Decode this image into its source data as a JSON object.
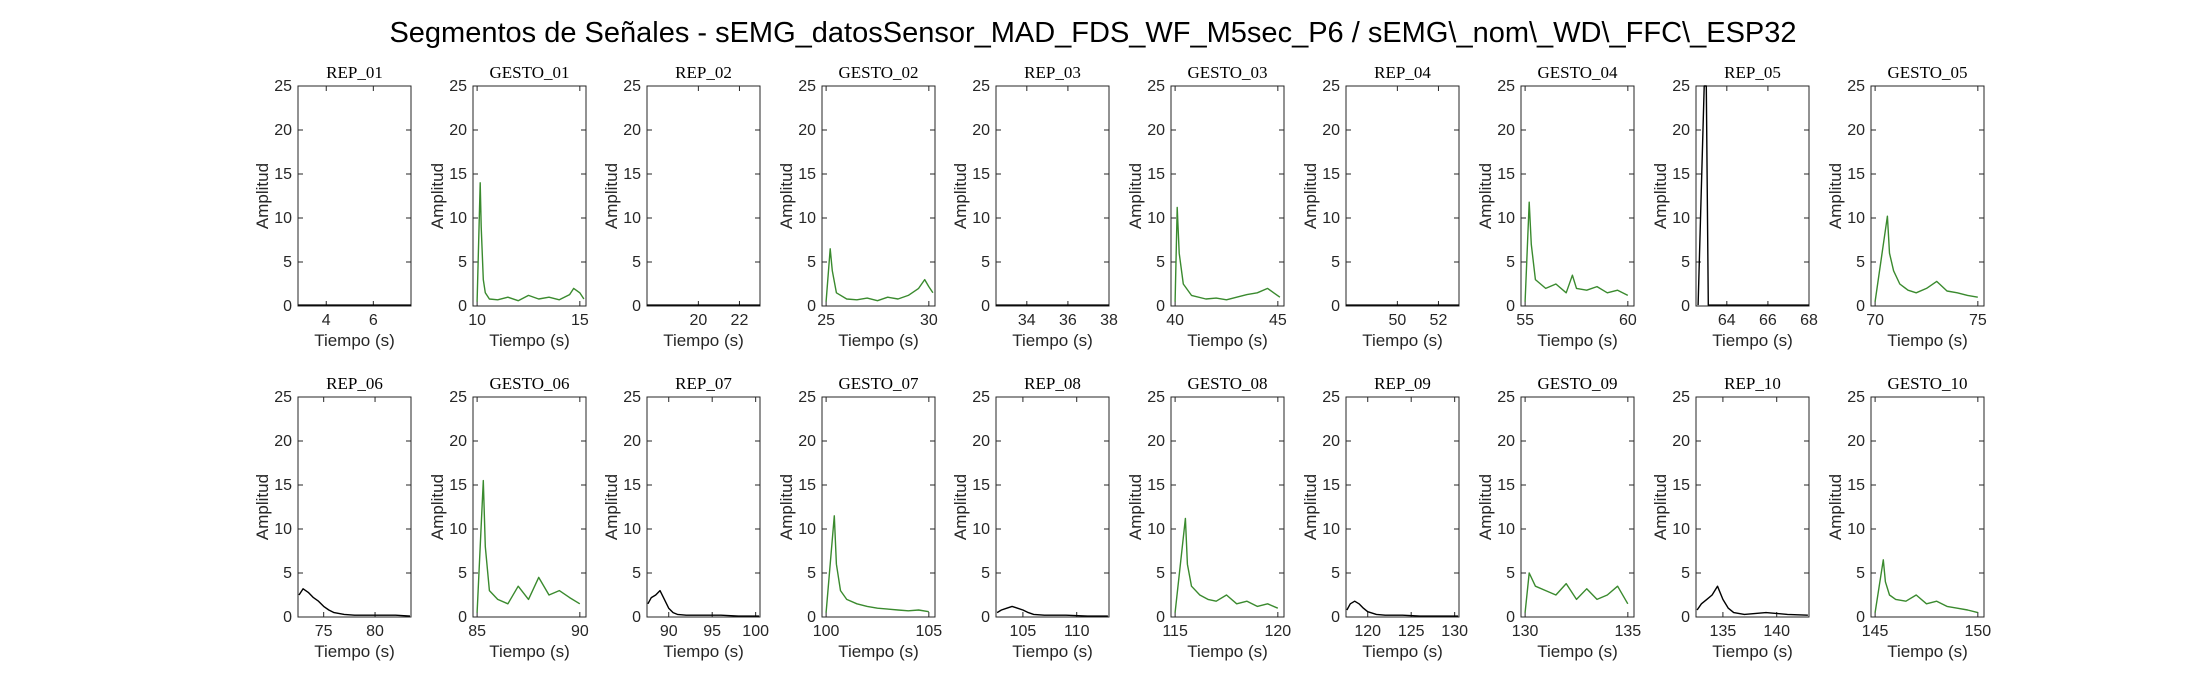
{
  "figure": {
    "title": "Segmentos de Señales - sEMG_datosSensor_MAD_FDS_WF_M5sec_P6 / sEMG\\_nom\\_WD\\_FFC\\_ESP32"
  },
  "colors": {
    "rep": "#000000",
    "gesto": "#3a8a2e",
    "axis": "#262626"
  },
  "chart_data": [
    {
      "type": "line",
      "title": "REP_01",
      "xlabel": "Tiempo (s)",
      "ylabel": "Amplitud",
      "xlim": [
        2.8,
        7.6
      ],
      "ylim": [
        0,
        25
      ],
      "xticks": [
        4,
        6
      ],
      "yticks": [
        0,
        5,
        10,
        15,
        20,
        25
      ],
      "series": [
        {
          "x": [
            2.8,
            3.0,
            3.5,
            4.0,
            4.5,
            5.0,
            5.5,
            6.0,
            6.5,
            7.0,
            7.6
          ],
          "values": [
            0.1,
            0.1,
            0.1,
            0.1,
            0.1,
            0.1,
            0.1,
            0.1,
            0.1,
            0.1,
            0.1
          ]
        }
      ]
    },
    {
      "type": "line",
      "title": "GESTO_01",
      "xlabel": "Tiempo (s)",
      "ylabel": "Amplitud",
      "xlim": [
        9.8,
        15.3
      ],
      "ylim": [
        0,
        25
      ],
      "xticks": [
        10,
        15
      ],
      "yticks": [
        0,
        5,
        10,
        15,
        20,
        25
      ],
      "series": [
        {
          "x": [
            10.0,
            10.15,
            10.2,
            10.3,
            10.4,
            10.6,
            11.0,
            11.5,
            12.0,
            12.5,
            13.0,
            13.5,
            14.0,
            14.5,
            14.7,
            15.0,
            15.2
          ],
          "values": [
            0.5,
            14.0,
            9.0,
            3.0,
            1.5,
            0.8,
            0.7,
            1.0,
            0.6,
            1.2,
            0.8,
            1.0,
            0.7,
            1.3,
            2.0,
            1.5,
            0.8
          ]
        }
      ]
    },
    {
      "type": "line",
      "title": "REP_02",
      "xlabel": "Tiempo (s)",
      "ylabel": "Amplitud",
      "xlim": [
        17.5,
        23.0
      ],
      "ylim": [
        0,
        25
      ],
      "xticks": [
        20,
        22
      ],
      "yticks": [
        0,
        5,
        10,
        15,
        20,
        25
      ],
      "series": [
        {
          "x": [
            17.5,
            18,
            19,
            20,
            21,
            22,
            23
          ],
          "values": [
            0.1,
            0.1,
            0.1,
            0.1,
            0.1,
            0.1,
            0.1
          ]
        }
      ]
    },
    {
      "type": "line",
      "title": "GESTO_02",
      "xlabel": "Tiempo (s)",
      "ylabel": "Amplitud",
      "xlim": [
        24.8,
        30.3
      ],
      "ylim": [
        0,
        25
      ],
      "xticks": [
        25,
        30
      ],
      "yticks": [
        0,
        5,
        10,
        15,
        20,
        25
      ],
      "series": [
        {
          "x": [
            25.0,
            25.2,
            25.3,
            25.5,
            26.0,
            26.5,
            27.0,
            27.5,
            28.0,
            28.5,
            29.0,
            29.5,
            29.8,
            30.0,
            30.2
          ],
          "values": [
            0.5,
            6.5,
            4.0,
            1.5,
            0.8,
            0.7,
            0.9,
            0.6,
            1.0,
            0.8,
            1.2,
            2.0,
            3.0,
            2.2,
            1.5
          ]
        }
      ]
    },
    {
      "type": "line",
      "title": "REP_03",
      "xlabel": "Tiempo (s)",
      "ylabel": "Amplitud",
      "xlim": [
        32.5,
        38.0
      ],
      "ylim": [
        0,
        25
      ],
      "xticks": [
        34,
        36,
        38
      ],
      "yticks": [
        0,
        5,
        10,
        15,
        20,
        25
      ],
      "series": [
        {
          "x": [
            32.5,
            33,
            34,
            35,
            36,
            37,
            38
          ],
          "values": [
            0.1,
            0.1,
            0.1,
            0.1,
            0.1,
            0.1,
            0.1
          ]
        }
      ]
    },
    {
      "type": "line",
      "title": "GESTO_03",
      "xlabel": "Tiempo (s)",
      "ylabel": "Amplitud",
      "xlim": [
        39.8,
        45.3
      ],
      "ylim": [
        0,
        25
      ],
      "xticks": [
        40,
        45
      ],
      "yticks": [
        0,
        5,
        10,
        15,
        20,
        25
      ],
      "series": [
        {
          "x": [
            40.0,
            40.1,
            40.2,
            40.4,
            40.8,
            41.5,
            42.0,
            42.5,
            43.0,
            43.5,
            44.0,
            44.5,
            44.8,
            45.1
          ],
          "values": [
            0.5,
            11.2,
            6.0,
            2.5,
            1.2,
            0.8,
            0.9,
            0.7,
            1.0,
            1.3,
            1.5,
            2.0,
            1.5,
            1.0
          ]
        }
      ]
    },
    {
      "type": "line",
      "title": "REP_04",
      "xlabel": "Tiempo (s)",
      "ylabel": "Amplitud",
      "xlim": [
        47.5,
        53.0
      ],
      "ylim": [
        0,
        25
      ],
      "xticks": [
        50,
        52
      ],
      "yticks": [
        0,
        5,
        10,
        15,
        20,
        25
      ],
      "series": [
        {
          "x": [
            47.5,
            48,
            49,
            50,
            51,
            52,
            53
          ],
          "values": [
            0.1,
            0.1,
            0.1,
            0.1,
            0.1,
            0.1,
            0.1
          ]
        }
      ]
    },
    {
      "type": "line",
      "title": "GESTO_04",
      "xlabel": "Tiempo (s)",
      "ylabel": "Amplitud",
      "xlim": [
        54.8,
        60.3
      ],
      "ylim": [
        0,
        25
      ],
      "xticks": [
        55,
        60
      ],
      "yticks": [
        0,
        5,
        10,
        15,
        20,
        25
      ],
      "series": [
        {
          "x": [
            55.0,
            55.2,
            55.3,
            55.5,
            56.0,
            56.5,
            57.0,
            57.3,
            57.5,
            58.0,
            58.5,
            59.0,
            59.5,
            60.0
          ],
          "values": [
            0.5,
            11.8,
            7.0,
            3.0,
            2.0,
            2.5,
            1.5,
            3.5,
            2.0,
            1.8,
            2.2,
            1.5,
            1.8,
            1.2
          ]
        }
      ]
    },
    {
      "type": "line",
      "title": "REP_05",
      "xlabel": "Tiempo (s)",
      "ylabel": "Amplitud",
      "xlim": [
        62.5,
        68.0
      ],
      "ylim": [
        0,
        25
      ],
      "xticks": [
        64,
        66,
        68
      ],
      "yticks": [
        0,
        5,
        10,
        15,
        20,
        25
      ],
      "series": [
        {
          "x": [
            62.6,
            62.9,
            63.0,
            63.1,
            64,
            65,
            66,
            67,
            68
          ],
          "values": [
            0.1,
            25.0,
            25.0,
            0.1,
            0.1,
            0.1,
            0.1,
            0.1,
            0.1
          ]
        }
      ]
    },
    {
      "type": "line",
      "title": "GESTO_05",
      "xlabel": "Tiempo (s)",
      "ylabel": "Amplitud",
      "xlim": [
        69.8,
        75.3
      ],
      "ylim": [
        0,
        25
      ],
      "xticks": [
        70,
        75
      ],
      "yticks": [
        0,
        5,
        10,
        15,
        20,
        25
      ],
      "series": [
        {
          "x": [
            70.0,
            70.6,
            70.7,
            70.9,
            71.2,
            71.6,
            72.0,
            72.5,
            73.0,
            73.5,
            74.0,
            74.5,
            75.0
          ],
          "values": [
            0.5,
            10.2,
            6.0,
            4.0,
            2.5,
            1.8,
            1.5,
            2.0,
            2.8,
            1.7,
            1.5,
            1.2,
            1.0
          ]
        }
      ]
    },
    {
      "type": "line",
      "title": "REP_06",
      "xlabel": "Tiempo (s)",
      "ylabel": "Amplitud",
      "xlim": [
        72.5,
        83.5
      ],
      "ylim": [
        0,
        25
      ],
      "xticks": [
        75,
        80
      ],
      "yticks": [
        0,
        5,
        10,
        15,
        20,
        25
      ],
      "series": [
        {
          "x": [
            72.6,
            73.0,
            73.5,
            74.0,
            74.5,
            75.0,
            75.5,
            76.0,
            77.0,
            78.0,
            80.0,
            82.0,
            83.4
          ],
          "values": [
            2.5,
            3.2,
            2.8,
            2.2,
            1.8,
            1.2,
            0.8,
            0.5,
            0.3,
            0.2,
            0.2,
            0.2,
            0.1
          ]
        }
      ]
    },
    {
      "type": "line",
      "title": "GESTO_06",
      "xlabel": "Tiempo (s)",
      "ylabel": "Amplitud",
      "xlim": [
        84.8,
        90.3
      ],
      "ylim": [
        0,
        25
      ],
      "xticks": [
        85,
        90
      ],
      "yticks": [
        0,
        5,
        10,
        15,
        20,
        25
      ],
      "series": [
        {
          "x": [
            85.0,
            85.3,
            85.4,
            85.6,
            86.0,
            86.5,
            87.0,
            87.5,
            88.0,
            88.5,
            89.0,
            89.5,
            90.0
          ],
          "values": [
            0.5,
            15.5,
            8.0,
            3.0,
            2.0,
            1.5,
            3.5,
            2.0,
            4.5,
            2.5,
            3.0,
            2.2,
            1.5
          ]
        }
      ]
    },
    {
      "type": "line",
      "title": "REP_07",
      "xlabel": "Tiempo (s)",
      "ylabel": "Amplitud",
      "xlim": [
        87.5,
        100.5
      ],
      "ylim": [
        0,
        25
      ],
      "xticks": [
        90,
        95,
        100
      ],
      "yticks": [
        0,
        5,
        10,
        15,
        20,
        25
      ],
      "series": [
        {
          "x": [
            87.6,
            88.0,
            88.5,
            89.0,
            89.5,
            90.0,
            90.5,
            91.0,
            92.0,
            94.0,
            96.0,
            98.0,
            100.4
          ],
          "values": [
            1.5,
            2.2,
            2.5,
            3.0,
            2.0,
            1.0,
            0.5,
            0.3,
            0.2,
            0.2,
            0.2,
            0.1,
            0.1
          ]
        }
      ]
    },
    {
      "type": "line",
      "title": "GESTO_07",
      "xlabel": "Tiempo (s)",
      "ylabel": "Amplitud",
      "xlim": [
        99.8,
        105.3
      ],
      "ylim": [
        0,
        25
      ],
      "xticks": [
        100,
        105
      ],
      "yticks": [
        0,
        5,
        10,
        15,
        20,
        25
      ],
      "series": [
        {
          "x": [
            100.0,
            100.4,
            100.5,
            100.7,
            101.0,
            101.5,
            102.0,
            102.5,
            103.0,
            103.5,
            104.0,
            104.5,
            105.0
          ],
          "values": [
            0.5,
            11.5,
            6.0,
            3.0,
            2.0,
            1.5,
            1.2,
            1.0,
            0.9,
            0.8,
            0.7,
            0.8,
            0.6
          ]
        }
      ]
    },
    {
      "type": "line",
      "title": "REP_08",
      "xlabel": "Tiempo (s)",
      "ylabel": "Amplitud",
      "xlim": [
        102.5,
        113.0
      ],
      "ylim": [
        0,
        25
      ],
      "xticks": [
        105,
        110
      ],
      "yticks": [
        0,
        5,
        10,
        15,
        20,
        25
      ],
      "series": [
        {
          "x": [
            102.6,
            103.0,
            103.5,
            104.0,
            104.5,
            105.0,
            105.5,
            106.0,
            107.0,
            109.0,
            111.0,
            112.9
          ],
          "values": [
            0.5,
            0.8,
            1.0,
            1.2,
            1.0,
            0.8,
            0.5,
            0.3,
            0.2,
            0.2,
            0.1,
            0.1
          ]
        }
      ]
    },
    {
      "type": "line",
      "title": "GESTO_08",
      "xlabel": "Tiempo (s)",
      "ylabel": "Amplitud",
      "xlim": [
        114.8,
        120.3
      ],
      "ylim": [
        0,
        25
      ],
      "xticks": [
        115,
        120
      ],
      "yticks": [
        0,
        5,
        10,
        15,
        20,
        25
      ],
      "series": [
        {
          "x": [
            115.0,
            115.5,
            115.6,
            115.8,
            116.2,
            116.6,
            117.0,
            117.5,
            118.0,
            118.5,
            119.0,
            119.5,
            120.0
          ],
          "values": [
            0.5,
            11.2,
            6.0,
            3.5,
            2.5,
            2.0,
            1.8,
            2.5,
            1.5,
            1.8,
            1.2,
            1.5,
            1.0
          ]
        }
      ]
    },
    {
      "type": "line",
      "title": "REP_09",
      "xlabel": "Tiempo (s)",
      "ylabel": "Amplitud",
      "xlim": [
        117.5,
        130.5
      ],
      "ylim": [
        0,
        25
      ],
      "xticks": [
        120,
        125,
        130
      ],
      "yticks": [
        0,
        5,
        10,
        15,
        20,
        25
      ],
      "series": [
        {
          "x": [
            117.6,
            118.0,
            118.5,
            119.0,
            119.5,
            120.0,
            121.0,
            122.0,
            124.0,
            126.0,
            128.0,
            130.4
          ],
          "values": [
            0.8,
            1.5,
            1.8,
            1.5,
            1.0,
            0.6,
            0.3,
            0.2,
            0.2,
            0.1,
            0.1,
            0.1
          ]
        }
      ]
    },
    {
      "type": "line",
      "title": "GESTO_09",
      "xlabel": "Tiempo (s)",
      "ylabel": "Amplitud",
      "xlim": [
        129.8,
        135.3
      ],
      "ylim": [
        0,
        25
      ],
      "xticks": [
        130,
        135
      ],
      "yticks": [
        0,
        5,
        10,
        15,
        20,
        25
      ],
      "series": [
        {
          "x": [
            130.0,
            130.2,
            130.5,
            131.0,
            131.5,
            132.0,
            132.5,
            133.0,
            133.5,
            134.0,
            134.5,
            135.0
          ],
          "values": [
            0.5,
            5.0,
            3.5,
            3.0,
            2.5,
            3.8,
            2.0,
            3.2,
            2.0,
            2.5,
            3.5,
            1.5
          ]
        }
      ]
    },
    {
      "type": "line",
      "title": "REP_10",
      "xlabel": "Tiempo (s)",
      "ylabel": "Amplitud",
      "xlim": [
        132.5,
        143.0
      ],
      "ylim": [
        0,
        25
      ],
      "xticks": [
        135,
        140
      ],
      "yticks": [
        0,
        5,
        10,
        15,
        20,
        25
      ],
      "series": [
        {
          "x": [
            132.6,
            133.0,
            133.5,
            134.0,
            134.5,
            135.0,
            135.5,
            136.0,
            137.0,
            139.0,
            141.0,
            142.9
          ],
          "values": [
            0.8,
            1.5,
            2.0,
            2.5,
            3.5,
            2.0,
            1.0,
            0.5,
            0.3,
            0.5,
            0.3,
            0.2
          ]
        }
      ]
    },
    {
      "type": "line",
      "title": "GESTO_10",
      "xlabel": "Tiempo (s)",
      "ylabel": "Amplitud",
      "xlim": [
        144.8,
        150.3
      ],
      "ylim": [
        0,
        25
      ],
      "xticks": [
        145,
        150
      ],
      "yticks": [
        0,
        5,
        10,
        15,
        20,
        25
      ],
      "series": [
        {
          "x": [
            145.0,
            145.4,
            145.5,
            145.7,
            146.0,
            146.5,
            147.0,
            147.5,
            148.0,
            148.5,
            149.0,
            149.5,
            150.0
          ],
          "values": [
            0.5,
            6.5,
            4.0,
            2.5,
            2.0,
            1.8,
            2.5,
            1.5,
            1.8,
            1.2,
            1.0,
            0.8,
            0.5
          ]
        }
      ]
    }
  ]
}
